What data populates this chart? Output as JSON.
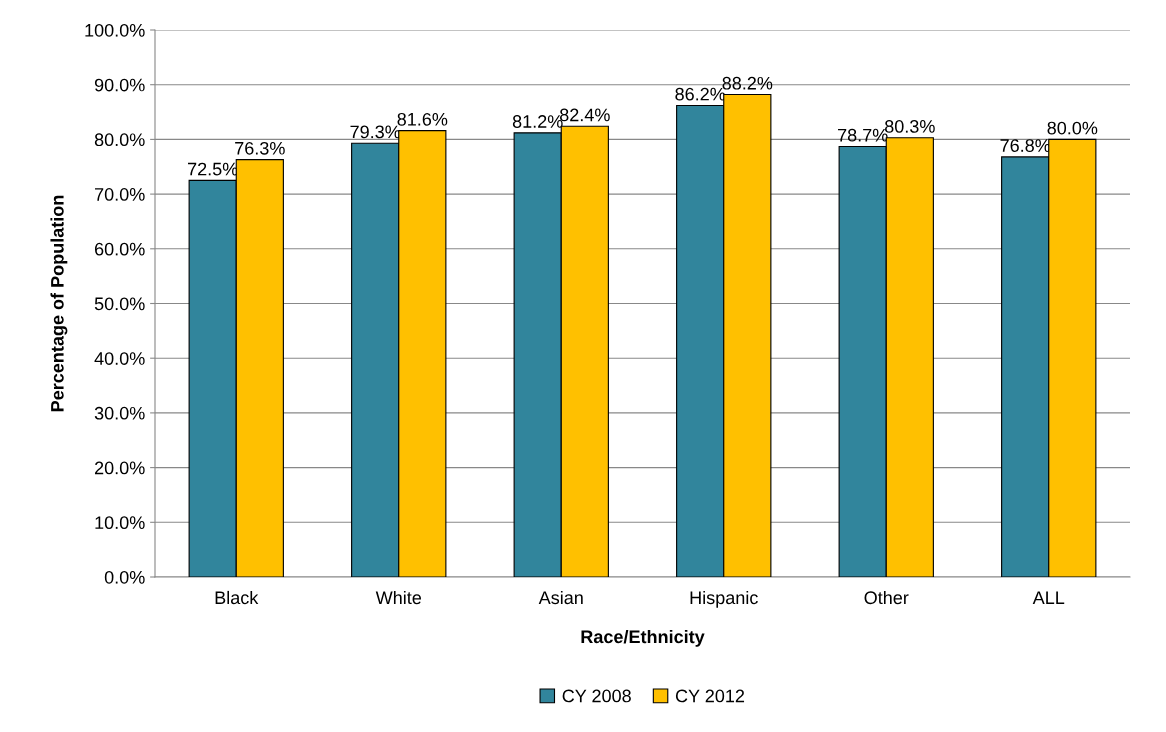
{
  "chart_data": {
    "type": "bar",
    "xlabel": "Race/Ethnicity",
    "ylabel": "Percentage of Population",
    "categories": [
      "Black",
      "White",
      "Asian",
      "Hispanic",
      "Other",
      "ALL"
    ],
    "series": [
      {
        "name": "CY 2008",
        "color": "#31859c",
        "values": [
          72.5,
          79.3,
          81.2,
          86.2,
          78.7,
          76.8
        ],
        "value_labels": [
          "72.5%",
          "79.3%",
          "81.2%",
          "86.2%",
          "78.7%",
          "76.8%"
        ]
      },
      {
        "name": "CY 2012",
        "color": "#ffc000",
        "values": [
          76.3,
          81.6,
          82.4,
          88.2,
          80.3,
          80.0
        ],
        "value_labels": [
          "76.3%",
          "81.6%",
          "82.4%",
          "88.2%",
          "80.3%",
          "80.0%"
        ]
      }
    ],
    "ylim": [
      0,
      100
    ],
    "yticks": [
      {
        "value": 0,
        "label": "0.0%"
      },
      {
        "value": 10,
        "label": "10.0%"
      },
      {
        "value": 20,
        "label": "20.0%"
      },
      {
        "value": 30,
        "label": "30.0%"
      },
      {
        "value": 40,
        "label": "40.0%"
      },
      {
        "value": 50,
        "label": "50.0%"
      },
      {
        "value": 60,
        "label": "60.0%"
      },
      {
        "value": 70,
        "label": "70.0%"
      },
      {
        "value": 80,
        "label": "80.0%"
      },
      {
        "value": 90,
        "label": "90.0%"
      },
      {
        "value": 100,
        "label": "100.0%"
      }
    ],
    "grid": "y",
    "legend": "bottom"
  }
}
